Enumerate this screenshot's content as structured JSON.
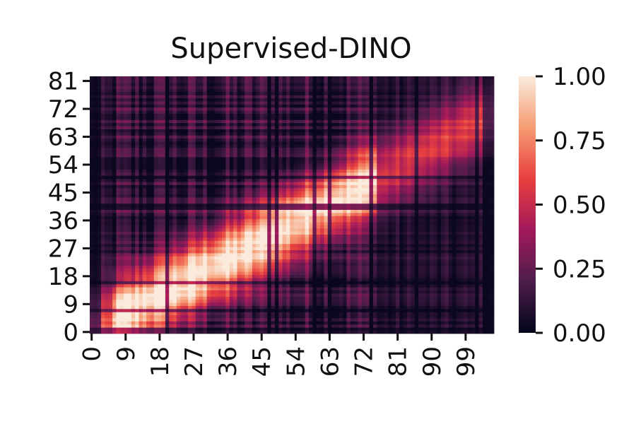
{
  "chart_data": {
    "type": "heatmap",
    "title": "Supervised-DINO",
    "xlabel": "",
    "ylabel": "",
    "x_range": [
      0,
      107
    ],
    "y_range": [
      0,
      83
    ],
    "x_tick_labels": [
      "0",
      "9",
      "18",
      "27",
      "36",
      "45",
      "54",
      "63",
      "72",
      "81",
      "90",
      "99"
    ],
    "y_tick_labels": [
      "0",
      "9",
      "18",
      "27",
      "36",
      "45",
      "54",
      "63",
      "72",
      "81"
    ],
    "colorbar": {
      "range": [
        0.0,
        1.0
      ],
      "tick_labels": [
        "0.00",
        "0.25",
        "0.50",
        "0.75",
        "1.00"
      ],
      "colormap": "rocket",
      "stops": [
        "#03051a",
        "#4c1d4b",
        "#a11a5b",
        "#e83f3f",
        "#f69c73",
        "#faebdd"
      ]
    },
    "pattern": "high similarity (0.75–1.0) concentrated along a diagonal band from the bottom-left toward the center-right; low values (~0.0–0.2) along the left columns, bottom rows, and columns beyond ~75; dark horizontal band near row 41 and dark vertical stripes on the right side"
  }
}
